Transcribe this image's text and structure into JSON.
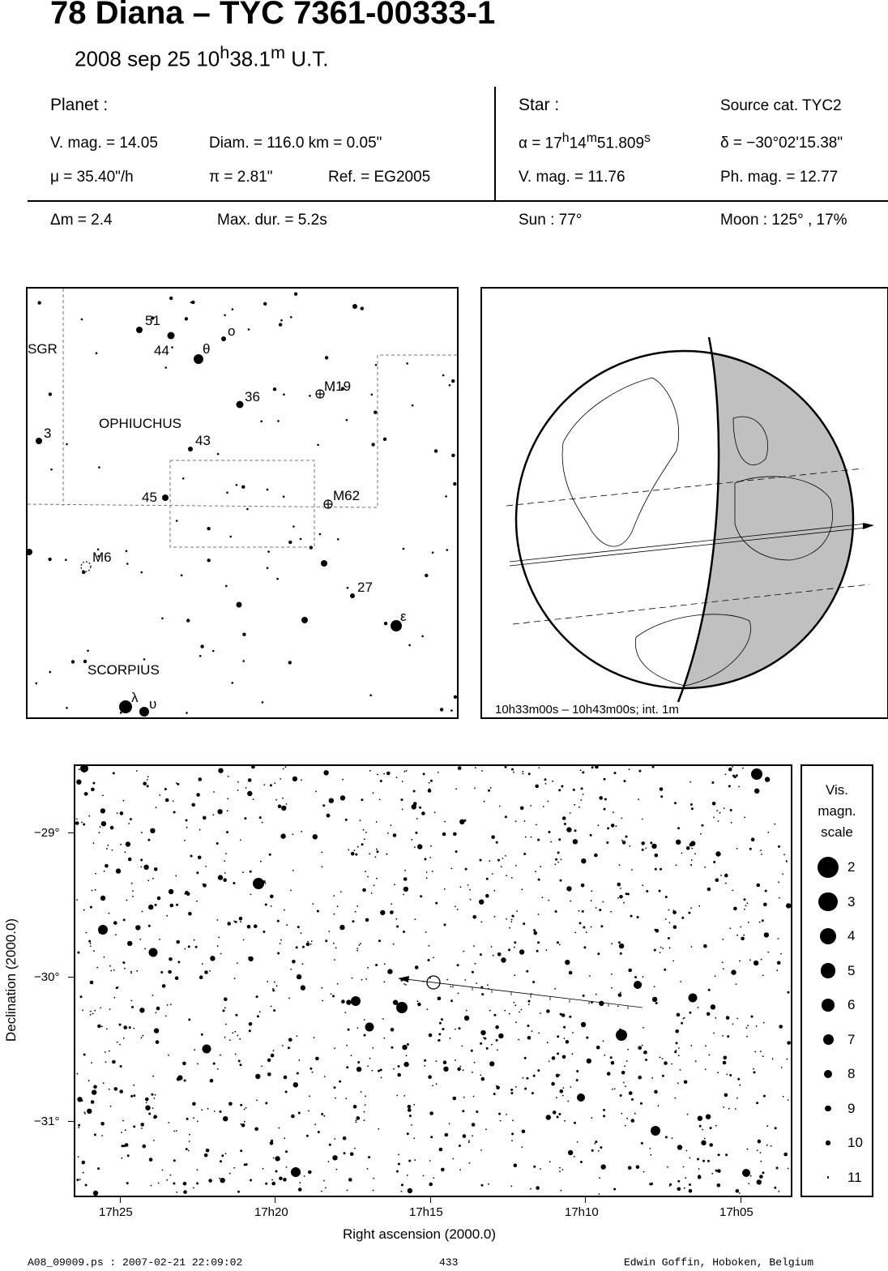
{
  "header": {
    "title": "78 Diana  –  TYC 7361-00333-1",
    "date": "2008 sep 25  10",
    "time_h_sup": "h",
    "time_min": "38.1",
    "time_m_sup": "m",
    "time_suffix": " U.T."
  },
  "planet": {
    "heading": "Planet :",
    "vmag": "V. mag. = 14.05",
    "diam": "Diam. = 116.0 km = 0.05\"",
    "mu": "μ =  35.40\"/h",
    "pi": "π =  2.81\"",
    "ref": "Ref. = EG2005"
  },
  "star": {
    "heading": "Star :",
    "source": "Source cat.  TYC2",
    "alpha_prefix": "α = 17",
    "alpha_h": "h",
    "alpha_min": "14",
    "alpha_m": "m",
    "alpha_sec": "51.809",
    "alpha_s": "s",
    "delta": "δ = −30°02'15.38\"",
    "vmag": "V. mag. = 11.76",
    "phmag": "Ph. mag. = 12.77"
  },
  "event": {
    "dm": "Δm = 2.4",
    "maxdur": "Max. dur. = 5.2s",
    "sun": "Sun :  77°",
    "moon": "Moon : 125° , 17%"
  },
  "finder": {
    "labels": {
      "sgr": "SGR",
      "ophiuchus": "OPHIUCHUS",
      "scorpius": "SCORPIUS",
      "n51": "51",
      "n44": "44",
      "theta": "θ",
      "omicron": "ο",
      "n36": "36",
      "m19": "M19",
      "n3": "3",
      "n43": "43",
      "n45": "45",
      "m62": "M62",
      "m6": "M6",
      "n27": "27",
      "epsilon": "ε",
      "lambda": "λ",
      "upsilon": "υ"
    }
  },
  "globe": {
    "caption": "10h33m00s – 10h43m00s; int.  1m",
    "colors": {
      "night": "#c0c0c0",
      "day": "#ffffff"
    }
  },
  "detail_chart": {
    "ylabel": "Declination (2000.0)",
    "xlabel": "Right ascension (2000.0)",
    "yticks": [
      "−29°",
      "−30°",
      "−31°"
    ],
    "xticks": [
      "17h25",
      "17h20",
      "17h15",
      "17h10",
      "17h05"
    ]
  },
  "scale": {
    "title_line1": "Vis.",
    "title_line2": "magn.",
    "title_line3": "scale",
    "mags": [
      "2",
      "3",
      "4",
      "5",
      "6",
      "7",
      "8",
      "9",
      "10",
      "11"
    ]
  },
  "footer": {
    "left": "A08_09009.ps : 2007-02-21 22:09:02",
    "center": "433",
    "right": "Edwin Goffin, Hoboken, Belgium"
  }
}
